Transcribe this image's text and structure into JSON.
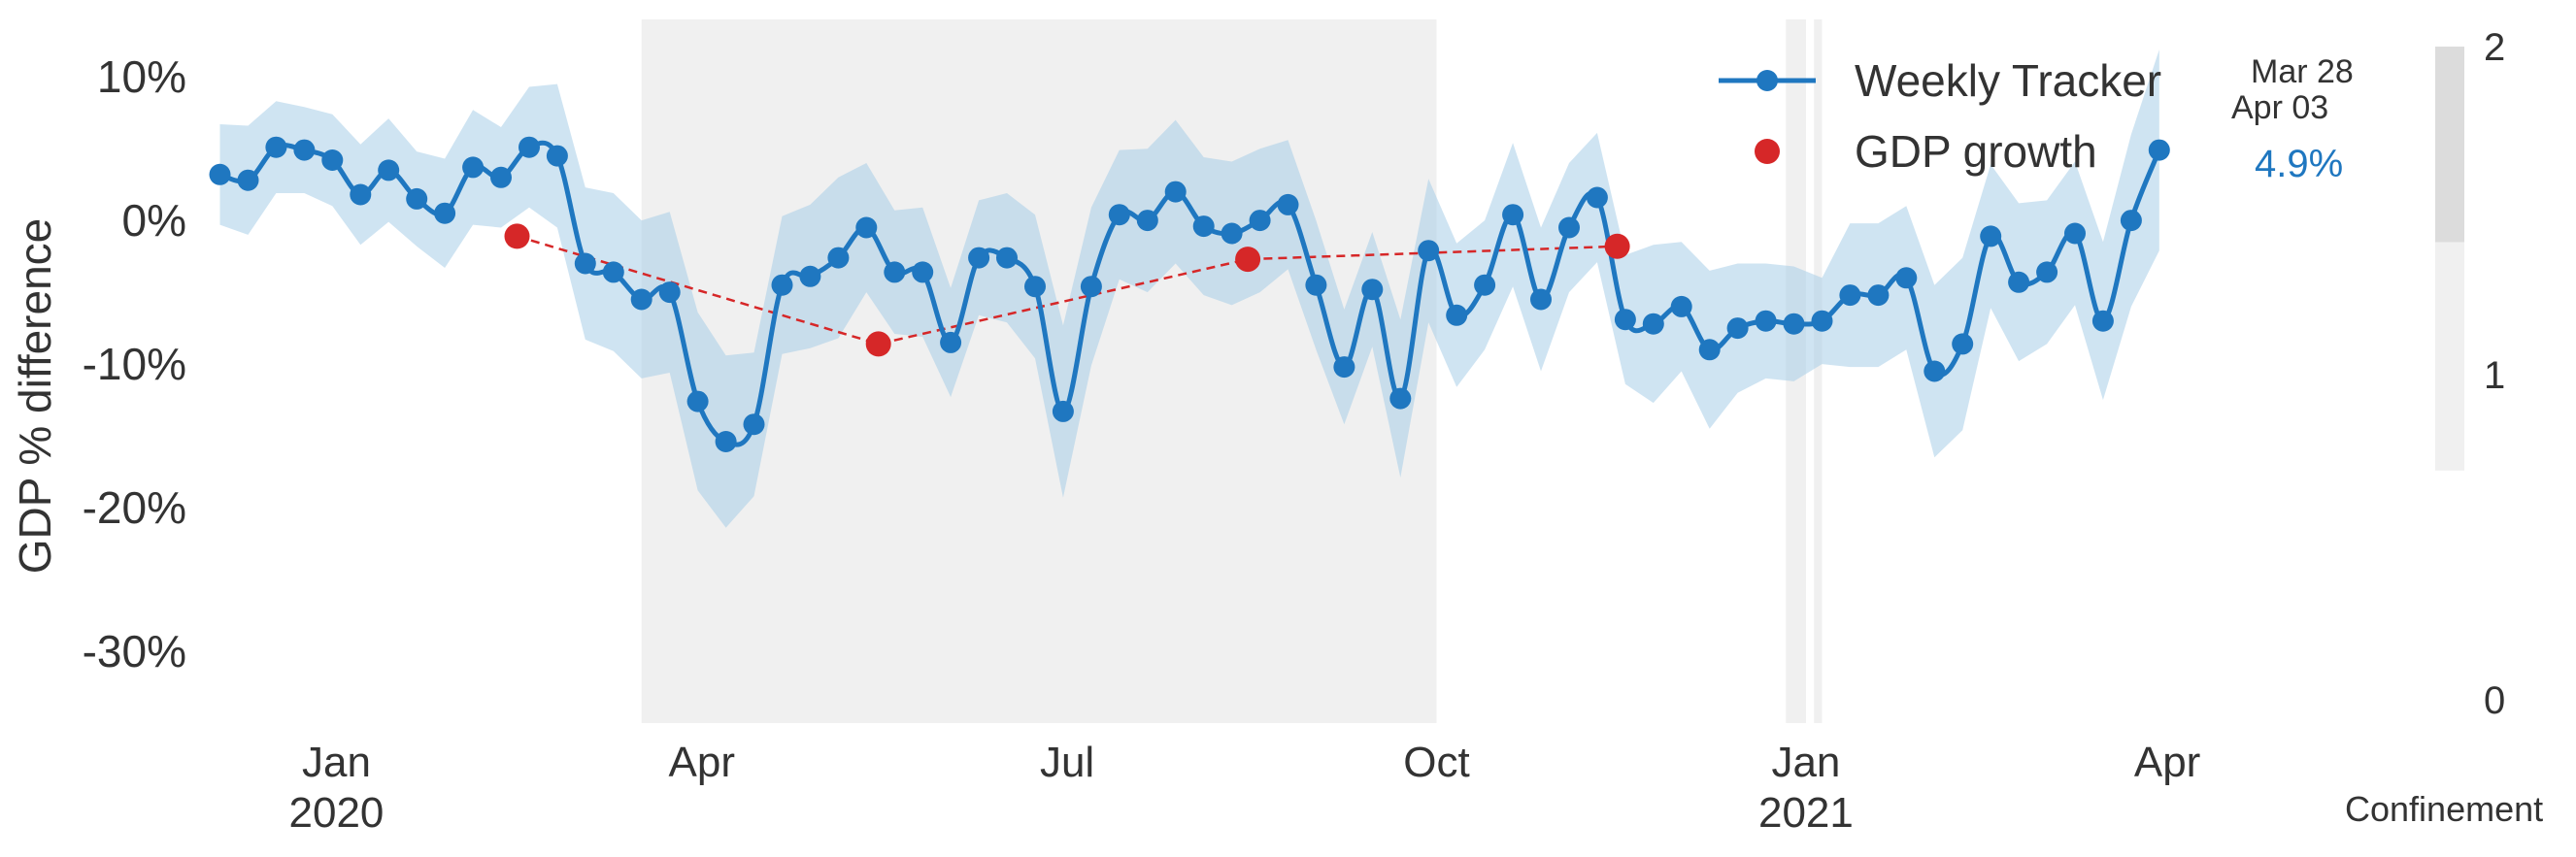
{
  "chart_data": {
    "type": "line",
    "ylabel": "GDP % difference",
    "ylim": [
      -35,
      14
    ],
    "xlim": [
      "2019-11-29",
      "2021-04-15"
    ],
    "y_ticks": [
      {
        "value": 10,
        "label": "10%"
      },
      {
        "value": 0,
        "label": "0%"
      },
      {
        "value": -10,
        "label": "-10%"
      },
      {
        "value": -20,
        "label": "-20%"
      },
      {
        "value": -30,
        "label": "-30%"
      }
    ],
    "x_ticks": [
      {
        "date": "2020-01-01",
        "month": "Jan",
        "year": "2020"
      },
      {
        "date": "2020-04-01",
        "month": "Apr",
        "year": ""
      },
      {
        "date": "2020-07-01",
        "month": "Jul",
        "year": ""
      },
      {
        "date": "2020-10-01",
        "month": "Oct",
        "year": ""
      },
      {
        "date": "2021-01-01",
        "month": "Jan",
        "year": "2021"
      },
      {
        "date": "2021-04-01",
        "month": "Apr",
        "year": ""
      }
    ],
    "grid": false,
    "legend_position": "top-right",
    "colors": {
      "tracker": "#1f77c0",
      "band": "#a8cde8",
      "gdp": "#d62728",
      "confinement": "#f0f0f0",
      "annotation": "#1f77c0"
    },
    "series": [
      {
        "name": "Weekly Tracker",
        "points": [
          [
            "2019-12-03",
            3.2
          ],
          [
            "2019-12-10",
            2.8
          ],
          [
            "2019-12-17",
            5.1
          ],
          [
            "2019-12-24",
            4.9
          ],
          [
            "2019-12-31",
            4.2
          ],
          [
            "2020-01-07",
            1.8
          ],
          [
            "2020-01-14",
            3.5
          ],
          [
            "2020-01-21",
            1.5
          ],
          [
            "2020-01-28",
            0.5
          ],
          [
            "2020-02-04",
            3.7
          ],
          [
            "2020-02-11",
            3.0
          ],
          [
            "2020-02-18",
            5.1
          ],
          [
            "2020-02-25",
            4.5
          ],
          [
            "2020-03-03",
            -3.0
          ],
          [
            "2020-03-10",
            -3.6
          ],
          [
            "2020-03-17",
            -5.5
          ],
          [
            "2020-03-24",
            -5.0
          ],
          [
            "2020-03-31",
            -12.6
          ],
          [
            "2020-04-07",
            -15.4
          ],
          [
            "2020-04-14",
            -14.2
          ],
          [
            "2020-04-21",
            -4.5
          ],
          [
            "2020-04-28",
            -3.9
          ],
          [
            "2020-05-05",
            -2.6
          ],
          [
            "2020-05-12",
            -0.5
          ],
          [
            "2020-05-19",
            -3.6
          ],
          [
            "2020-05-26",
            -3.6
          ],
          [
            "2020-06-02",
            -8.5
          ],
          [
            "2020-06-09",
            -2.6
          ],
          [
            "2020-06-16",
            -2.6
          ],
          [
            "2020-06-23",
            -4.6
          ],
          [
            "2020-06-30",
            -13.3
          ],
          [
            "2020-07-07",
            -4.6
          ],
          [
            "2020-07-14",
            0.4
          ],
          [
            "2020-07-21",
            0.0
          ],
          [
            "2020-07-28",
            2.0
          ],
          [
            "2020-08-04",
            -0.4
          ],
          [
            "2020-08-11",
            -0.9
          ],
          [
            "2020-08-18",
            0.0
          ],
          [
            "2020-08-25",
            1.1
          ],
          [
            "2020-09-01",
            -4.5
          ],
          [
            "2020-09-08",
            -10.2
          ],
          [
            "2020-09-15",
            -4.8
          ],
          [
            "2020-09-22",
            -12.4
          ],
          [
            "2020-09-29",
            -2.1
          ],
          [
            "2020-10-06",
            -6.6
          ],
          [
            "2020-10-13",
            -4.5
          ],
          [
            "2020-10-20",
            0.4
          ],
          [
            "2020-10-27",
            -5.5
          ],
          [
            "2020-11-03",
            -0.5
          ],
          [
            "2020-11-10",
            1.6
          ],
          [
            "2020-11-17",
            -6.9
          ],
          [
            "2020-11-24",
            -7.2
          ],
          [
            "2020-12-01",
            -6.0
          ],
          [
            "2020-12-08",
            -9.0
          ],
          [
            "2020-12-15",
            -7.5
          ],
          [
            "2020-12-22",
            -7.0
          ],
          [
            "2020-12-29",
            -7.2
          ],
          [
            "2021-01-05",
            -7.0
          ],
          [
            "2021-01-12",
            -5.2
          ],
          [
            "2021-01-19",
            -5.2
          ],
          [
            "2021-01-26",
            -4.0
          ],
          [
            "2021-02-02",
            -10.5
          ],
          [
            "2021-02-09",
            -8.6
          ],
          [
            "2021-02-16",
            -1.1
          ],
          [
            "2021-02-23",
            -4.3
          ],
          [
            "2021-03-02",
            -3.6
          ],
          [
            "2021-03-09",
            -0.9
          ],
          [
            "2021-03-16",
            -7.0
          ],
          [
            "2021-03-23",
            0.0
          ],
          [
            "2021-03-30",
            4.9
          ]
        ],
        "band_halfwidth": [
          3.5,
          3.8,
          3.2,
          3.0,
          3.2,
          3.5,
          3.6,
          3.3,
          3.8,
          4.0,
          3.5,
          4.2,
          5.0,
          5.3,
          5.5,
          5.5,
          5.6,
          6.2,
          6.0,
          5.0,
          4.8,
          5.0,
          5.6,
          4.5,
          4.3,
          4.5,
          3.8,
          4.0,
          4.5,
          5.0,
          6.0,
          5.5,
          4.5,
          5.0,
          5.0,
          4.8,
          5.0,
          5.0,
          4.5,
          4.5,
          4.0,
          4.0,
          5.5,
          5.0,
          5.0,
          4.5,
          5.0,
          5.0,
          4.5,
          4.5,
          4.5,
          5.5,
          4.5,
          5.5,
          4.5,
          4.0,
          4.0,
          3.0,
          5.0,
          5.0,
          5.0,
          6.0,
          6.0,
          5.0,
          5.5,
          5.0,
          5.0,
          5.5,
          6.0,
          7.0
        ]
      },
      {
        "name": "GDP growth",
        "points": [
          [
            "2020-02-15",
            -1.1
          ],
          [
            "2020-05-15",
            -8.6
          ],
          [
            "2020-08-15",
            -2.7
          ],
          [
            "2020-11-15",
            -1.8
          ]
        ]
      }
    ],
    "confinement_spans": [
      {
        "start": "2020-03-17",
        "end": "2020-10-01",
        "level": 1
      },
      {
        "start": "2020-12-27",
        "end": "2021-01-01",
        "level": 1
      },
      {
        "start": "2021-01-03",
        "end": "2021-01-05",
        "level": 1
      }
    ],
    "annotations": {
      "date_line1": "Mar 28",
      "date_line2": "Apr 03",
      "latest_value": "4.9%"
    },
    "confinement_legend": {
      "title": "Confinement",
      "ticks": [
        "2",
        "1",
        "0"
      ],
      "bands": [
        {
          "from": 1.4,
          "to": 2.0,
          "color": "#dcdcdc"
        },
        {
          "from": 0.7,
          "to": 1.4,
          "color": "#f0f0f0"
        }
      ]
    }
  }
}
